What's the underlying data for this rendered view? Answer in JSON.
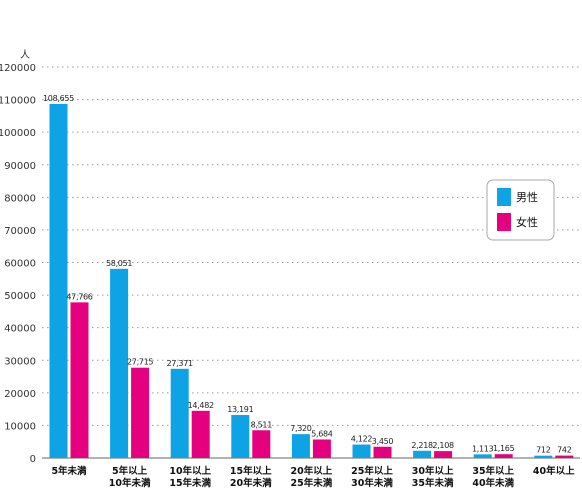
{
  "chart_data": {
    "type": "bar",
    "unit_label": "人",
    "ylim": [
      0,
      120000
    ],
    "yticks": [
      0,
      10000,
      20000,
      30000,
      40000,
      50000,
      60000,
      70000,
      80000,
      90000,
      100000,
      110000,
      120000
    ],
    "grid": true,
    "legend_position": "right",
    "categories": [
      [
        "5年未満"
      ],
      [
        "5年以上",
        "10年未満"
      ],
      [
        "10年以上",
        "15年未満"
      ],
      [
        "15年以上",
        "20年未満"
      ],
      [
        "20年以上",
        "25年未満"
      ],
      [
        "25年以上",
        "30年未満"
      ],
      [
        "30年以上",
        "35年未満"
      ],
      [
        "35年以上",
        "40年未満"
      ],
      [
        "40年以上"
      ]
    ],
    "series": [
      {
        "name": "男性",
        "color": "#0ea3e4",
        "values": [
          108655,
          58051,
          27371,
          13191,
          7320,
          4122,
          2218,
          1113,
          712
        ],
        "labels": [
          "108,655",
          "58,051",
          "27,371",
          "13,191",
          "7,320",
          "4,122",
          "2,218",
          "1,113",
          "712"
        ]
      },
      {
        "name": "女性",
        "color": "#e4007f",
        "values": [
          47766,
          27715,
          14482,
          8511,
          5684,
          3450,
          2108,
          1165,
          742
        ],
        "labels": [
          "47,766",
          "27,715",
          "14,482",
          "8,511",
          "5,684",
          "3,450",
          "2,108",
          "1,165",
          "742"
        ]
      }
    ]
  }
}
